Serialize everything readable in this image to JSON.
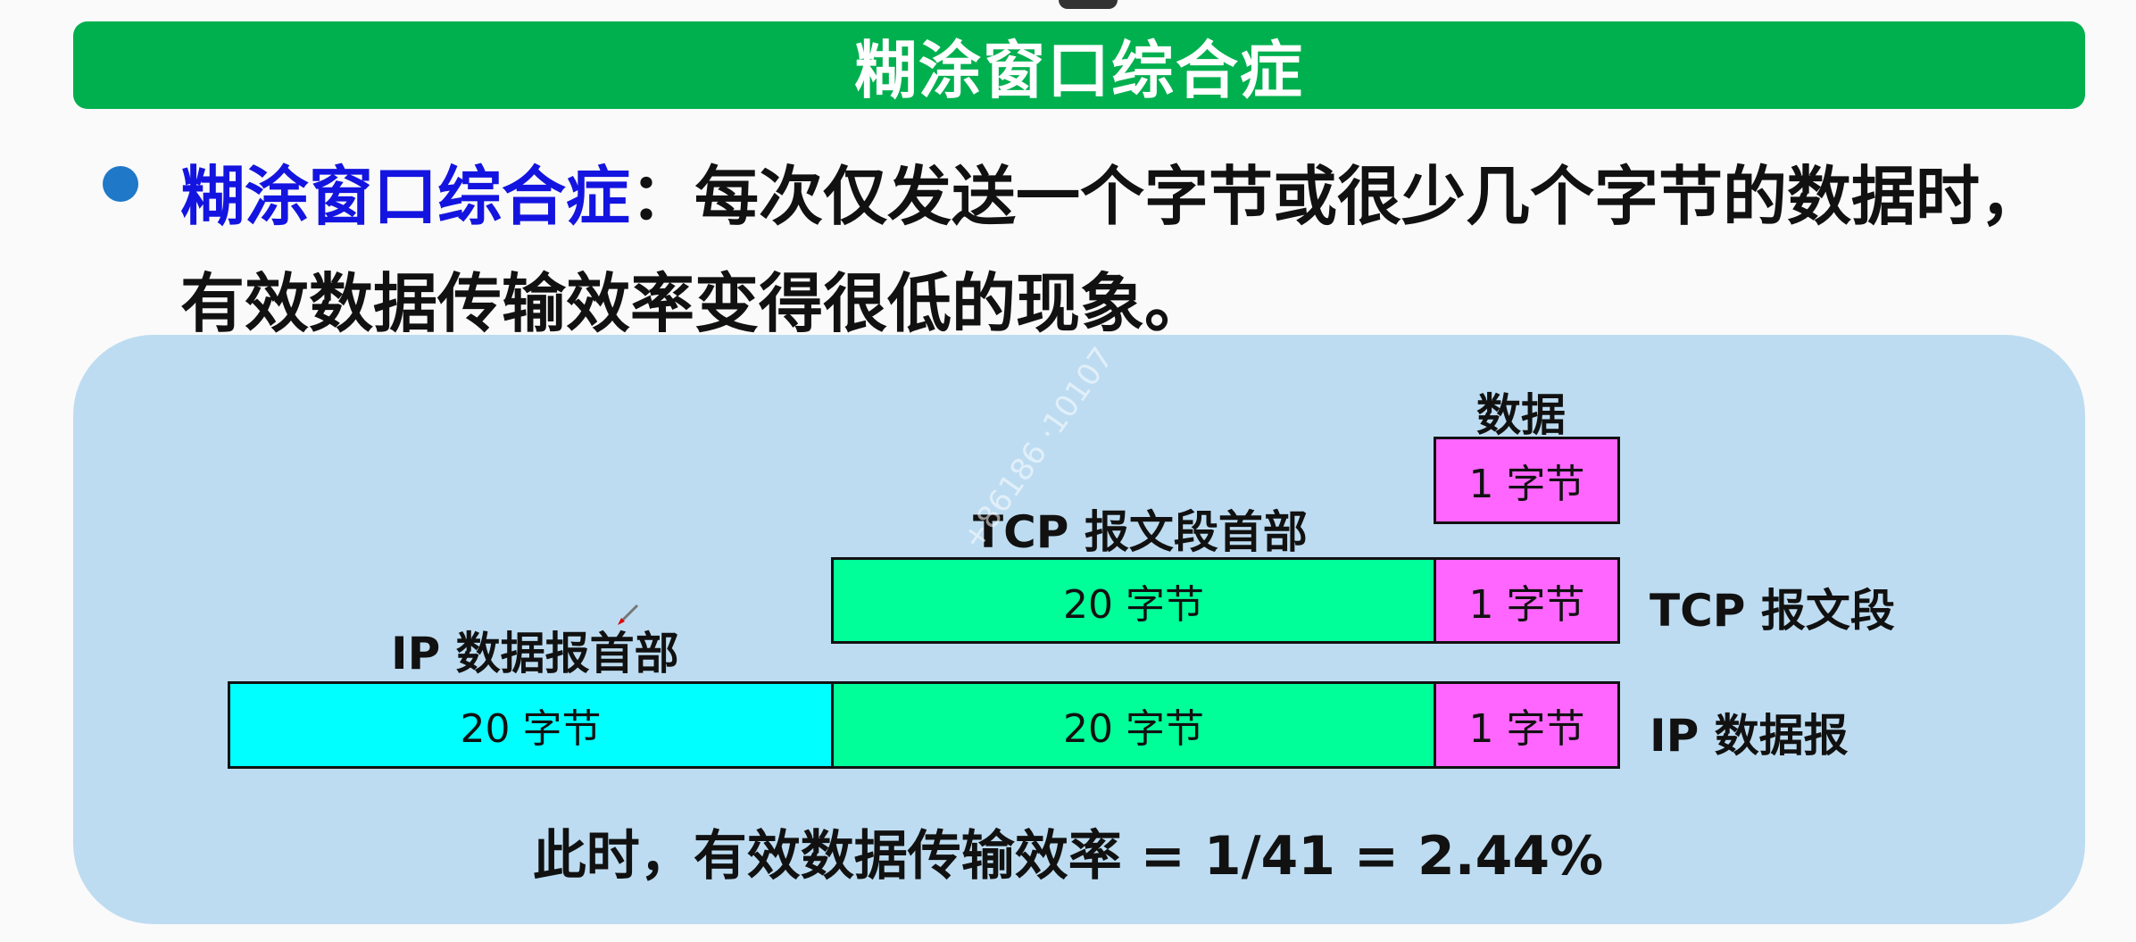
{
  "title": "糊涂窗口综合症",
  "definition": {
    "term": "糊涂窗口综合症",
    "text": "：每次仅发送一个字节或很少几个字节的数据时，有效数据传输效率变得很低的现象。"
  },
  "diagram": {
    "data_label": "数据",
    "tcp_header_label": "TCP 报文段首部",
    "ip_header_label": "IP 数据报首部",
    "tcp_segment_label": "TCP 报文段",
    "ip_datagram_label": "IP 数据报",
    "data_box": "1 字节",
    "tcp_header_box": "20 字节",
    "tcp_data_box": "1 字节",
    "ip_header_box": "20 字节",
    "ip_tcp_header_box": "20 字节",
    "ip_data_box": "1 字节"
  },
  "efficiency": "此时，有效数据传输效率 = 1/41 = 2.44%",
  "watermark": "+86186 ·10107",
  "colors": {
    "title_bar": "#00b04f",
    "term": "#1414e0",
    "bullet": "#1f78c8",
    "panel": "#bddcf1",
    "ip_header": "#00ffff",
    "tcp_header": "#00ff99",
    "data": "#ff66ff"
  }
}
